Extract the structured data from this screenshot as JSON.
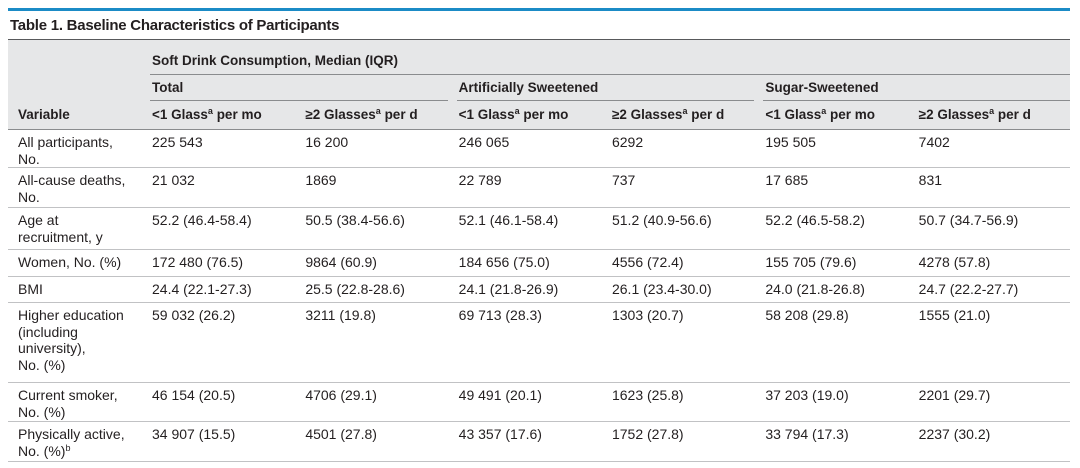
{
  "colors": {
    "accent_rule": "#1b8bc6",
    "header_fill": "#e6e7e8",
    "text": "#231f20"
  },
  "table": {
    "title": "Table 1. Baseline Characteristics of Participants",
    "spanner": "Soft Drink Consumption, Median (IQR)",
    "variable_header": "Variable",
    "groups": [
      {
        "label": "Total",
        "columns": [
          {
            "text": "<1 Glass",
            "sup": "a",
            "suffix": " per mo"
          },
          {
            "text": "≥2 Glasses",
            "sup": "a",
            "suffix": " per d"
          }
        ]
      },
      {
        "label": "Artificially Sweetened",
        "columns": [
          {
            "text": "<1 Glass",
            "sup": "a",
            "suffix": " per mo"
          },
          {
            "text": "≥2 Glasses",
            "sup": "a",
            "suffix": " per d"
          }
        ]
      },
      {
        "label": "Sugar-Sweetened",
        "columns": [
          {
            "text": "<1 Glass",
            "sup": "a",
            "suffix": " per mo"
          },
          {
            "text": "≥2 Glasses",
            "sup": "a",
            "suffix": " per d"
          }
        ]
      }
    ],
    "rows": [
      {
        "label_lines": [
          "All participants,",
          "No."
        ],
        "values": [
          "225 543",
          "16 200",
          "246 065",
          "6292",
          "195 505",
          "7402"
        ]
      },
      {
        "label_lines": [
          "All-cause deaths,",
          "No."
        ],
        "values": [
          "21 032",
          "1869",
          "22 789",
          "737",
          "17 685",
          "831"
        ]
      },
      {
        "label_lines": [
          "Age at",
          "recruitment, y"
        ],
        "values": [
          "52.2 (46.4-58.4)",
          "50.5 (38.4-56.6)",
          "52.1 (46.1-58.4)",
          "51.2 (40.9-56.6)",
          "52.2 (46.5-58.2)",
          "50.7 (34.7-56.9)"
        ]
      },
      {
        "label_lines": [
          "Women, No. (%)"
        ],
        "values": [
          "172 480 (76.5)",
          "9864 (60.9)",
          "184 656 (75.0)",
          "4556 (72.4)",
          "155 705 (79.6)",
          "4278 (57.8)"
        ]
      },
      {
        "label_lines": [
          "BMI"
        ],
        "values": [
          "24.4 (22.1-27.3)",
          "25.5 (22.8-28.6)",
          "24.1 (21.8-26.9)",
          "26.1 (23.4-30.0)",
          "24.0 (21.8-26.8)",
          "24.7 (22.2-27.7)"
        ]
      },
      {
        "label_lines": [
          "Higher education",
          "(including",
          "university),",
          "No. (%)"
        ],
        "values": [
          "59 032 (26.2)",
          "3211 (19.8)",
          "69 713 (28.3)",
          "1303 (20.7)",
          "58 208 (29.8)",
          "1555 (21.0)"
        ]
      },
      {
        "label_lines": [
          "Current smoker,",
          "No. (%)"
        ],
        "values": [
          "46 154 (20.5)",
          "4706 (29.1)",
          "49 491 (20.1)",
          "1623 (25.8)",
          "37 203 (19.0)",
          "2201 (29.7)"
        ]
      },
      {
        "label_lines": [
          "Physically active,",
          "No. (%)"
        ],
        "label_sup": "b",
        "values": [
          "34 907 (15.5)",
          "4501 (27.8)",
          "43 357 (17.6)",
          "1752 (27.8)",
          "33 794 (17.3)",
          "2237 (30.2)"
        ]
      }
    ]
  }
}
